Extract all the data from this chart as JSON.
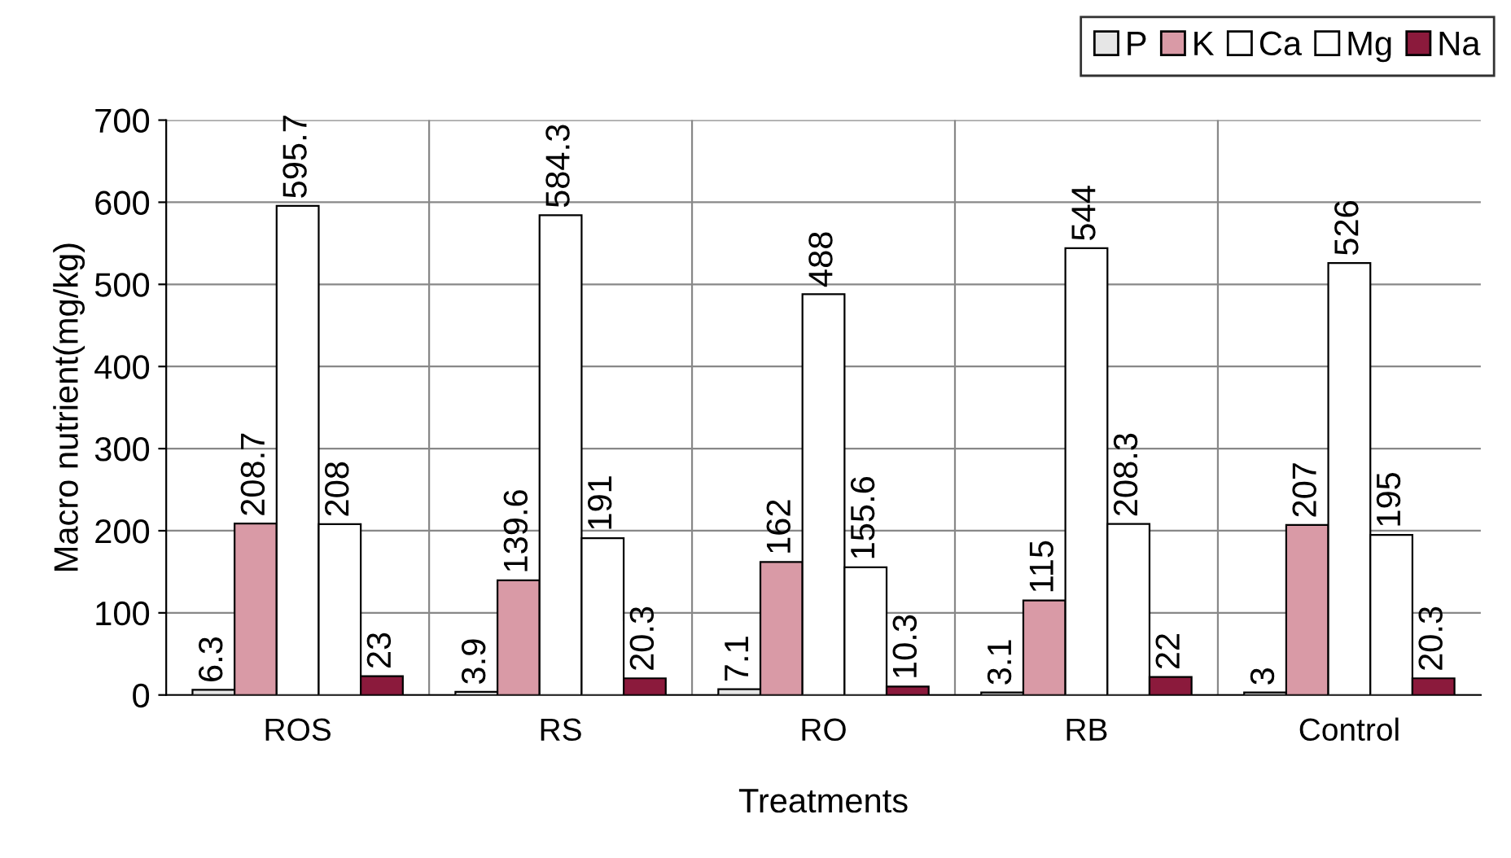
{
  "chart_data": {
    "type": "bar",
    "xlabel": "Treatments",
    "ylabel": "Macro nutrient(mg/kg)",
    "categories": [
      "ROS",
      "RS",
      "RO",
      "RB",
      "Control"
    ],
    "series": [
      {
        "name": "P",
        "color": "#e6e6e6",
        "values": [
          6.3,
          3.9,
          7.1,
          3.1,
          3
        ]
      },
      {
        "name": "K",
        "color": "#d99aa6",
        "values": [
          208.7,
          139.6,
          162,
          115,
          207
        ]
      },
      {
        "name": "Ca",
        "color": "#ffffff",
        "values": [
          595.7,
          584.3,
          488,
          544,
          526
        ]
      },
      {
        "name": "Mg",
        "color": "#ffffff",
        "values": [
          208,
          191,
          155.6,
          208.3,
          195
        ]
      },
      {
        "name": "Na",
        "color": "#8b1a3c",
        "values": [
          23,
          20.3,
          10.3,
          22,
          20.3
        ]
      }
    ],
    "ylim": [
      0,
      700
    ],
    "yticks": [
      0,
      100,
      200,
      300,
      400,
      500,
      600,
      700
    ],
    "grid": true,
    "legend": "top right",
    "data_labels": true
  }
}
